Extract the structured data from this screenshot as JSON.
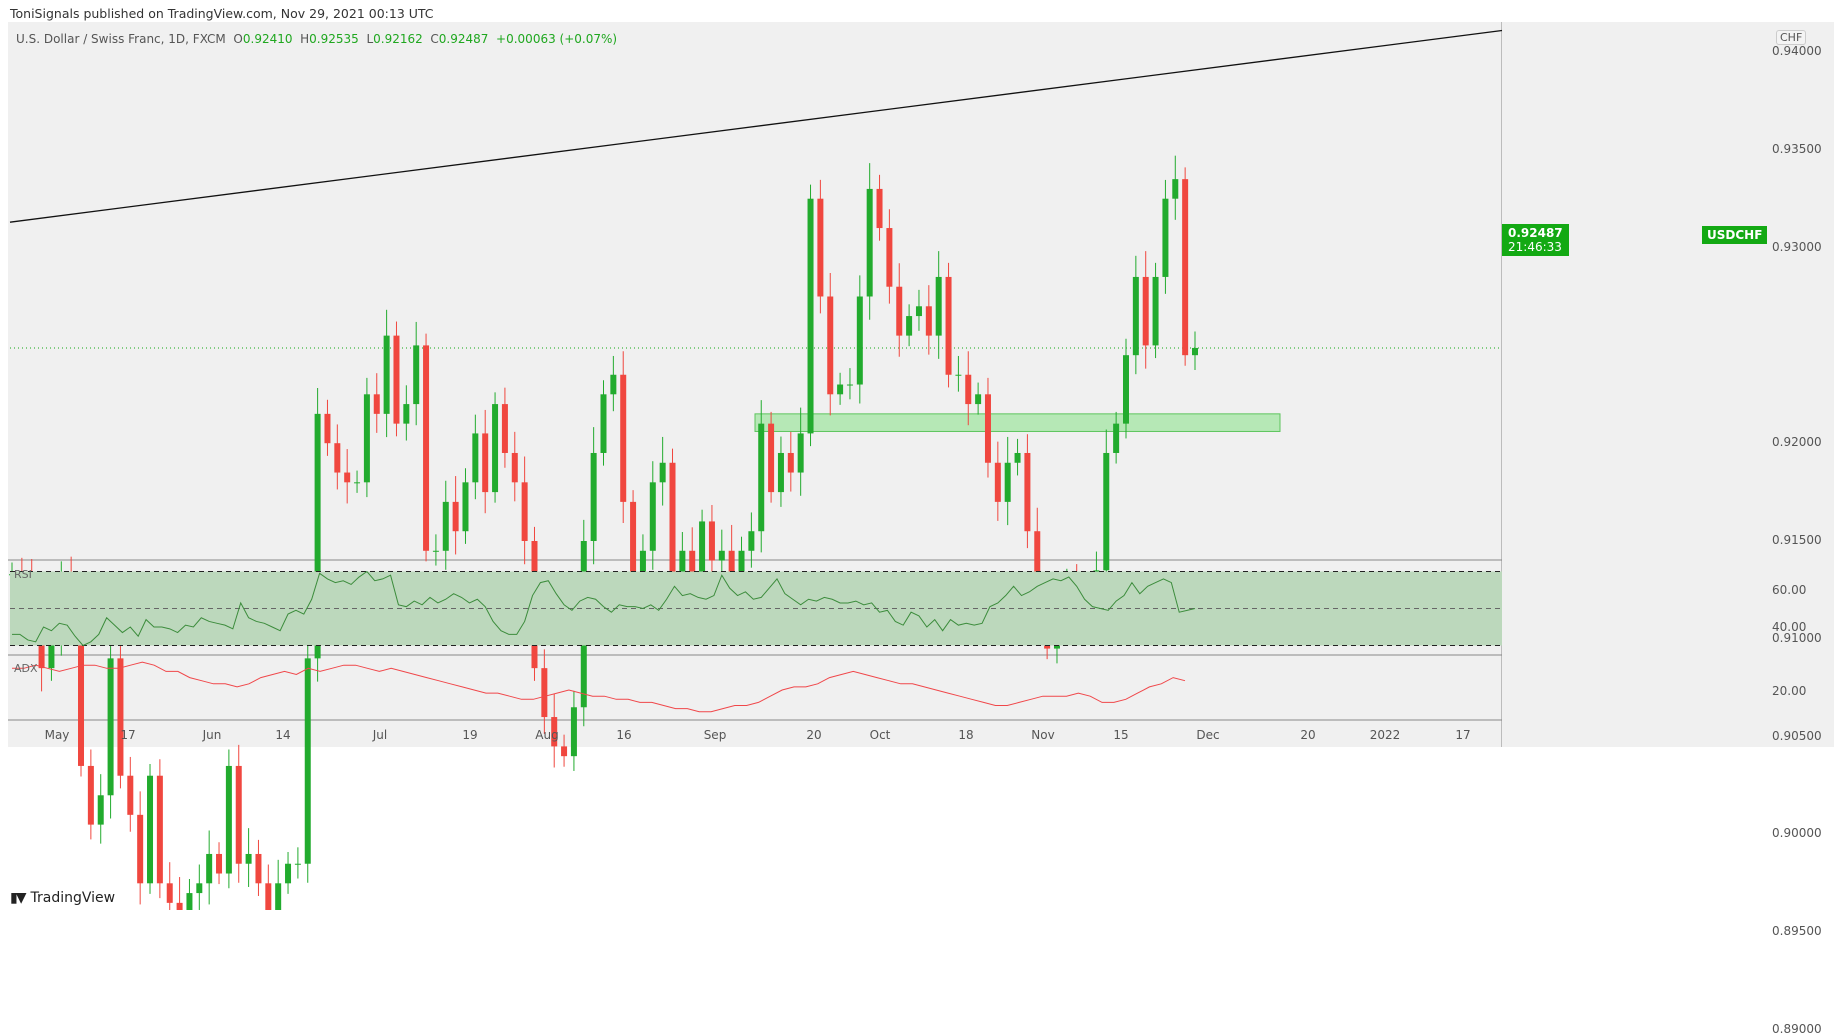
{
  "header": {
    "published": "ToniSignals published on TradingView.com, Nov 29, 2021 00:13 UTC"
  },
  "legend": {
    "symbol_desc": "U.S. Dollar / Swiss Franc, 1D, FXCM",
    "o_label": "O",
    "o": "0.92410",
    "h_label": "H",
    "h": "0.92535",
    "l_label": "L",
    "l": "0.92162",
    "c_label": "C",
    "c": "0.92487",
    "change": "+0.00063 (+0.07%)"
  },
  "price_axis": {
    "currency": "CHF",
    "ticks": [
      "0.94000",
      "0.93500",
      "0.93000",
      "0.92500",
      "0.92000",
      "0.91500",
      "0.91000",
      "0.90500",
      "0.90000",
      "0.89500",
      "0.89000"
    ],
    "tick_values": [
      0.94,
      0.935,
      0.93,
      0.925,
      0.92,
      0.915,
      0.91,
      0.905,
      0.9,
      0.895,
      0.89
    ]
  },
  "current": {
    "symbol": "USDCHF",
    "price": "0.92487",
    "countdown": "21:46:33",
    "value": 0.92487
  },
  "rsi": {
    "label": "RSI",
    "ticks": [
      "60.00",
      "40.00"
    ],
    "levels": [
      70,
      50,
      30
    ],
    "values": [
      36,
      36,
      33,
      32,
      40,
      38,
      42,
      41,
      35,
      30,
      32,
      36,
      45,
      41,
      37,
      40,
      35,
      44,
      40,
      40,
      39,
      37,
      41,
      40,
      45,
      43,
      42,
      41,
      39,
      53,
      45,
      43,
      42,
      40,
      38,
      47,
      49,
      47,
      55,
      69,
      66,
      64,
      65,
      63,
      67,
      70,
      65,
      66,
      68,
      52,
      51,
      54,
      52,
      56,
      53,
      55,
      58,
      56,
      53,
      55,
      51,
      43,
      38,
      36,
      36,
      43,
      57,
      64,
      65,
      58,
      52,
      49,
      54,
      56,
      55,
      51,
      48,
      52,
      51,
      51,
      50,
      52,
      49,
      55,
      62,
      57,
      58,
      56,
      55,
      57,
      68,
      61,
      57,
      59,
      55,
      56,
      61,
      66,
      58,
      55,
      52,
      55,
      54,
      56,
      55,
      53,
      53,
      54,
      52,
      53,
      48,
      49,
      43,
      41,
      48,
      46,
      40,
      44,
      38,
      44,
      41,
      42,
      41,
      42,
      51,
      53,
      57,
      62,
      57,
      59,
      62,
      64,
      66,
      65,
      67,
      62,
      55,
      51,
      50,
      49,
      54,
      57,
      64,
      58,
      62,
      64,
      66,
      64,
      48,
      49,
      50
    ]
  },
  "adx": {
    "label": "ADX",
    "ticks": [
      "20.00"
    ],
    "values": [
      27,
      27,
      28,
      27,
      26,
      27,
      28,
      28,
      27,
      27,
      28,
      29,
      28,
      26,
      26,
      24,
      23,
      22,
      22,
      21,
      22,
      24,
      25,
      26,
      25,
      27,
      26,
      27,
      28,
      28,
      27,
      26,
      27,
      26,
      25,
      24,
      23,
      22,
      21,
      20,
      19,
      19,
      18,
      17,
      17,
      18,
      19,
      20,
      19,
      18,
      18,
      17,
      17,
      16,
      16,
      15,
      14,
      14,
      13,
      13,
      14,
      15,
      15,
      16,
      18,
      20,
      21,
      21,
      22,
      24,
      25,
      26,
      25,
      24,
      23,
      22,
      22,
      21,
      20,
      19,
      18,
      17,
      16,
      15,
      15,
      16,
      17,
      18,
      18,
      18,
      19,
      18,
      16,
      16,
      17,
      19,
      21,
      22,
      24,
      23
    ]
  },
  "time_axis": {
    "labels": [
      "May",
      "17",
      "Jun",
      "14",
      "Jul",
      "19",
      "Aug",
      "16",
      "Sep",
      "20",
      "Oct",
      "18",
      "Nov",
      "15",
      "Dec",
      "20",
      "2022",
      "17"
    ]
  },
  "chart_data": {
    "type": "candlestick",
    "symbol": "USDCHF",
    "timeframe": "1D",
    "first_open": 0.9133,
    "closes": [
      0.9133,
      0.913,
      0.912,
      0.9085,
      0.91,
      0.913,
      0.9115,
      0.9035,
      0.9005,
      0.902,
      0.909,
      0.903,
      0.901,
      0.8975,
      0.903,
      0.8975,
      0.8965,
      0.8955,
      0.897,
      0.8975,
      0.899,
      0.898,
      0.9035,
      0.8985,
      0.899,
      0.8975,
      0.8955,
      0.8975,
      0.8985,
      0.8985,
      0.909,
      0.9215,
      0.92,
      0.9185,
      0.918,
      0.918,
      0.9225,
      0.9215,
      0.9255,
      0.921,
      0.922,
      0.925,
      0.9145,
      0.9145,
      0.917,
      0.9155,
      0.918,
      0.9205,
      0.9175,
      0.922,
      0.9195,
      0.918,
      0.915,
      0.9085,
      0.906,
      0.9045,
      0.904,
      0.9065,
      0.915,
      0.9195,
      0.9225,
      0.9235,
      0.917,
      0.913,
      0.9145,
      0.918,
      0.919,
      0.913,
      0.9145,
      0.9115,
      0.916,
      0.914,
      0.9145,
      0.913,
      0.9145,
      0.9155,
      0.921,
      0.9175,
      0.9195,
      0.9185,
      0.9205,
      0.9325,
      0.9275,
      0.9225,
      0.923,
      0.923,
      0.9275,
      0.933,
      0.931,
      0.928,
      0.9255,
      0.9265,
      0.927,
      0.9255,
      0.9285,
      0.9235,
      0.9235,
      0.922,
      0.9225,
      0.919,
      0.917,
      0.919,
      0.9195,
      0.9155,
      0.9125,
      0.9095,
      0.9125,
      0.9125,
      0.912,
      0.9125,
      0.9135,
      0.9195,
      0.921,
      0.9245,
      0.9285,
      0.925,
      0.9285,
      0.9325,
      0.9335,
      0.9245,
      0.92487
    ],
    "trendline": {
      "start_price": 0.9313,
      "end_price": 0.9411
    },
    "support_zone": {
      "low": 0.9206,
      "high": 0.9215
    },
    "colors": {
      "up": "#22ab2e",
      "down": "#f0473f",
      "zone": "#a8e6a8",
      "rsi": "#3c8c3c",
      "rsi_bg": "#bcd8bc",
      "adx": "#f0474a"
    }
  },
  "footer": {
    "brand": "TradingView",
    "logo": "17"
  }
}
